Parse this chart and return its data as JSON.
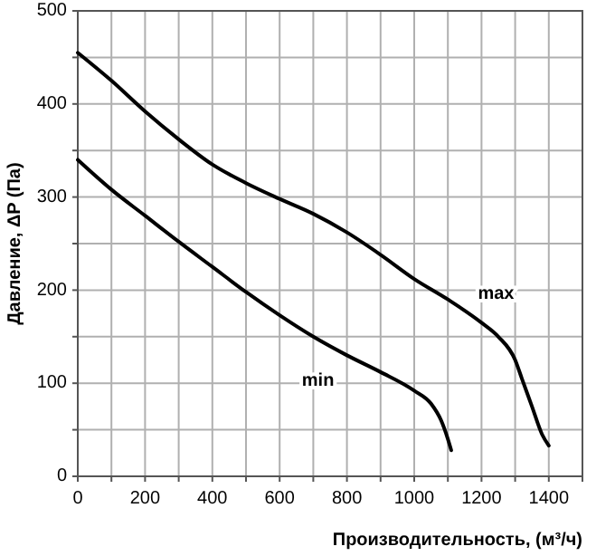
{
  "chart_data": {
    "type": "line",
    "xlabel": "Производительность, (м³/ч)",
    "ylabel": "Давление, ΔP (Па)",
    "xlim": [
      0,
      1500
    ],
    "ylim": [
      0,
      500
    ],
    "xticks": [
      0,
      {
        "value": 100,
        "label": null
      },
      200,
      {
        "value": 300,
        "label": null
      },
      400,
      {
        "value": 500,
        "label": null
      },
      600,
      {
        "value": 700,
        "label": null
      },
      800,
      {
        "value": 900,
        "label": null
      },
      1000,
      {
        "value": 1100,
        "label": null
      },
      1200,
      {
        "value": 1300,
        "label": null
      },
      1400,
      {
        "value": 1500,
        "label": null
      }
    ],
    "yticks": [
      0,
      {
        "value": 50,
        "label": null
      },
      100,
      {
        "value": 150,
        "label": null
      },
      200,
      {
        "value": 250,
        "label": null
      },
      300,
      {
        "value": 350,
        "label": null
      },
      400,
      {
        "value": 450,
        "label": null
      },
      500
    ],
    "grid": true,
    "marker": "none",
    "line_style": "solid",
    "series": [
      {
        "name": "max",
        "color": "#000000",
        "x": [
          0,
          100,
          200,
          300,
          400,
          500,
          600,
          700,
          800,
          900,
          1000,
          1100,
          1200,
          1250,
          1300,
          1320,
          1350,
          1380,
          1400
        ],
        "values": [
          455,
          425,
          392,
          362,
          335,
          315,
          298,
          282,
          262,
          238,
          212,
          190,
          165,
          150,
          125,
          105,
          75,
          45,
          33
        ]
      },
      {
        "name": "min",
        "color": "#000000",
        "x": [
          0,
          100,
          200,
          300,
          400,
          500,
          600,
          700,
          800,
          900,
          1000,
          1050,
          1080,
          1100,
          1110
        ],
        "values": [
          340,
          308,
          280,
          252,
          225,
          198,
          173,
          150,
          130,
          112,
          92,
          78,
          60,
          40,
          28
        ]
      }
    ]
  }
}
